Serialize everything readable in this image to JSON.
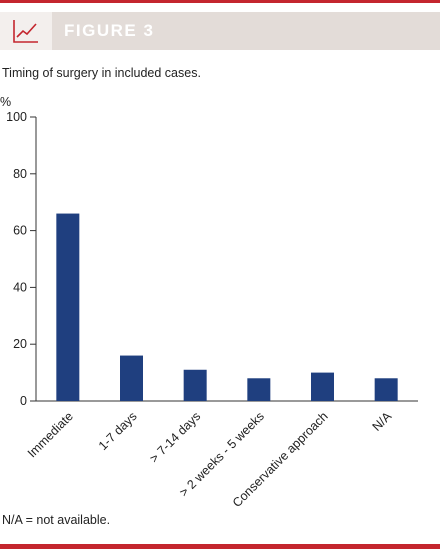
{
  "header": {
    "label": "FIGURE 3",
    "icon": "line-chart-icon"
  },
  "caption": "Timing of surgery in included cases.",
  "footnote": "N/A = not available.",
  "colors": {
    "accent": "#c4262e",
    "bar": "#1f3f7f",
    "header_bg": "#e3dcd8"
  },
  "chart_data": {
    "type": "bar",
    "title": "",
    "xlabel": "",
    "ylabel": "%",
    "categories": [
      "Immediate",
      "1-7 days",
      "> 7-14 days",
      "> 2 weeks - 5 weeks",
      "Conservative approach",
      "N/A"
    ],
    "values": [
      66,
      16,
      11,
      8,
      10,
      8
    ],
    "ylim": [
      0,
      100
    ],
    "yticks": [
      0,
      20,
      40,
      60,
      80,
      100
    ],
    "grid": false,
    "legend": "none"
  }
}
